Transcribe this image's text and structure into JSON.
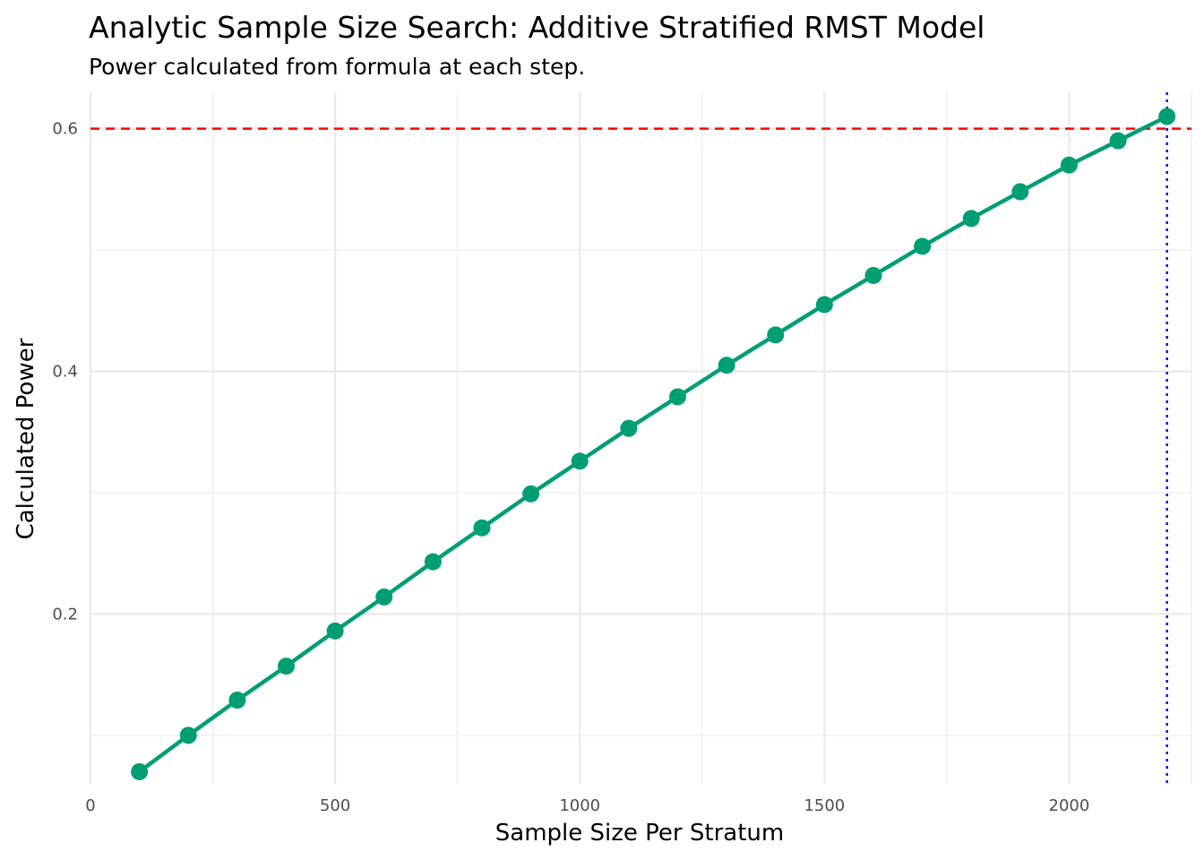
{
  "chart_data": {
    "type": "line",
    "title": "Analytic Sample Size Search: Additive Stratified RMST Model",
    "subtitle": "Power calculated from formula at each step.",
    "xlabel": "Sample Size Per Stratum",
    "ylabel": "Calculated Power",
    "xlim": [
      0,
      2250
    ],
    "ylim": [
      0.06,
      0.63
    ],
    "x_ticks": [
      0,
      500,
      1000,
      1500,
      2000
    ],
    "x_tick_labels": [
      "0",
      "500",
      "1000",
      "1500",
      "2000"
    ],
    "y_ticks": [
      0.2,
      0.4,
      0.6
    ],
    "y_tick_labels": [
      "0.2",
      "0.4",
      "0.6"
    ],
    "x_minor_ticks": [
      250,
      750,
      1250,
      1750,
      2250
    ],
    "y_minor_ticks": [
      0.1,
      0.3,
      0.5
    ],
    "grid": true,
    "series": [
      {
        "color": "#009E73",
        "x": [
          100,
          200,
          300,
          400,
          500,
          600,
          700,
          800,
          900,
          1000,
          1100,
          1200,
          1300,
          1400,
          1500,
          1600,
          1700,
          1800,
          1900,
          2000,
          2100,
          2200
        ],
        "y": [
          0.07,
          0.1,
          0.129,
          0.157,
          0.186,
          0.214,
          0.243,
          0.271,
          0.299,
          0.326,
          0.353,
          0.379,
          0.405,
          0.43,
          0.455,
          0.479,
          0.503,
          0.526,
          0.548,
          0.57,
          0.59,
          0.61
        ]
      }
    ],
    "reference_lines": [
      {
        "orientation": "horizontal",
        "value": 0.6,
        "color": "#ff0000",
        "style": "dashed"
      },
      {
        "orientation": "vertical",
        "value": 2200,
        "color": "#0000ff",
        "style": "dotted"
      }
    ]
  }
}
